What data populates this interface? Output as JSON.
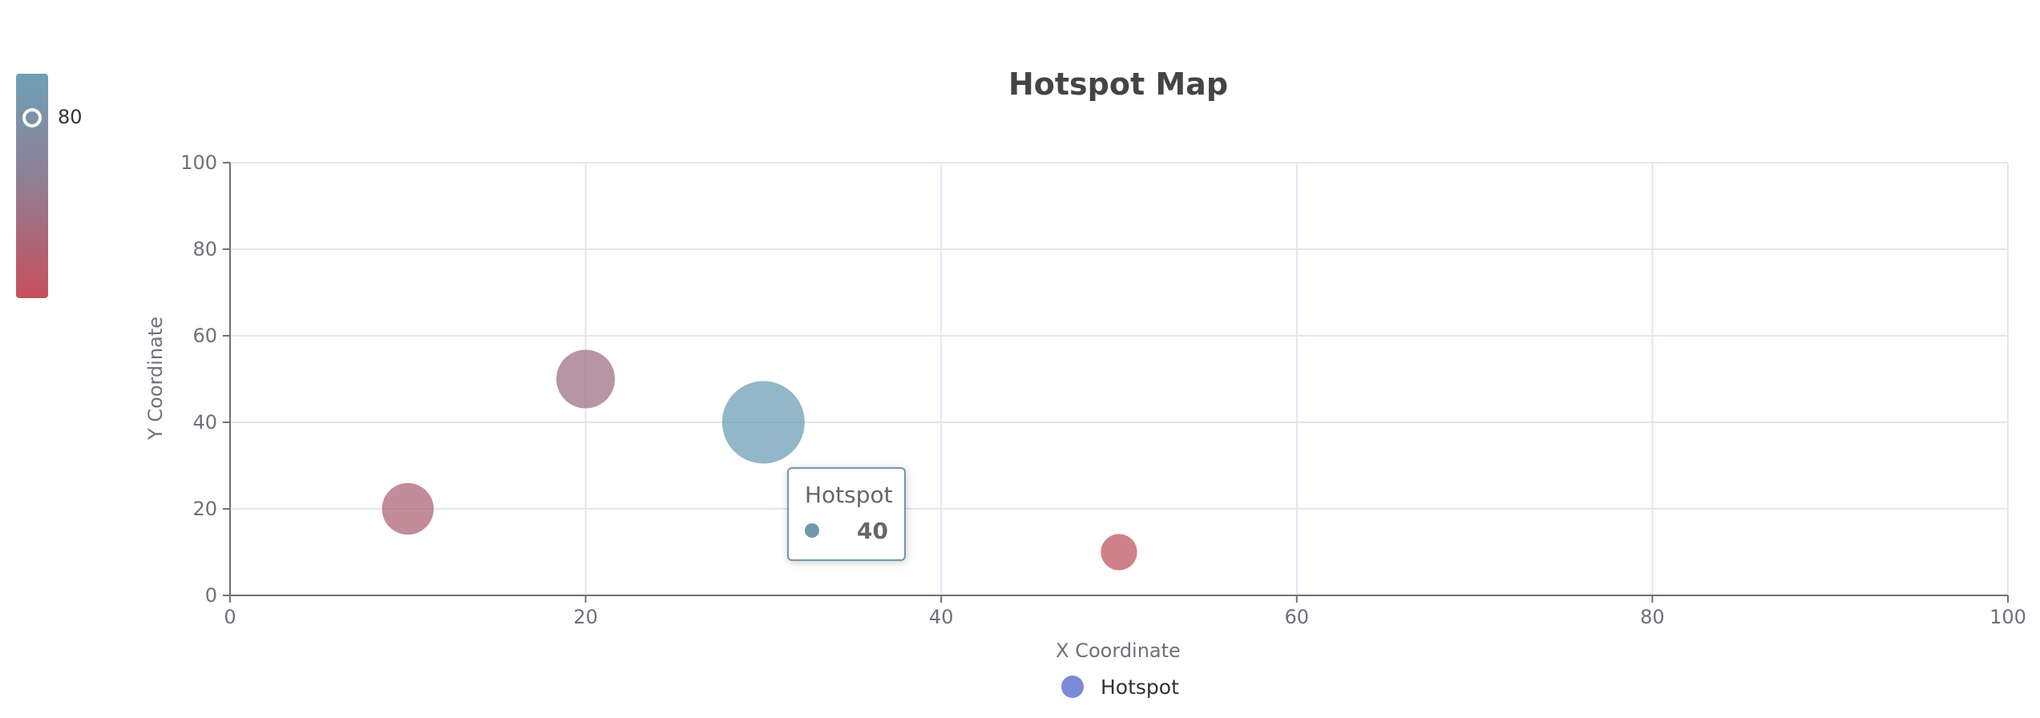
{
  "chart_data": {
    "type": "scatter",
    "title": "Hotspot Map",
    "xlabel": "X Coordinate",
    "ylabel": "Y Coordinate",
    "xlim": [
      0,
      100
    ],
    "ylim": [
      0,
      100
    ],
    "x_ticks": [
      "0",
      "20",
      "40",
      "60",
      "80",
      "100"
    ],
    "y_ticks": [
      "0",
      "20",
      "40",
      "60",
      "80",
      "100"
    ],
    "grid": true,
    "legend": {
      "position": "bottom-center",
      "entries": [
        "Hotspot"
      ],
      "color": "#7b89d6"
    },
    "series": [
      {
        "name": "Hotspot",
        "points": [
          {
            "x": 10,
            "y": 20,
            "value": 20
          },
          {
            "x": 20,
            "y": 50,
            "value": 30
          },
          {
            "x": 30,
            "y": 40,
            "value": 80
          },
          {
            "x": 50,
            "y": 10,
            "value": 5
          }
        ]
      }
    ],
    "visual_map": {
      "min": 0,
      "max": 80,
      "handle_value": "80",
      "color_low": "#c6505c",
      "color_mid": "#8e8197",
      "color_high": "#6e9fb5"
    },
    "tooltip": {
      "series": "Hotspot",
      "value": "40",
      "color": "#6f99ad"
    }
  }
}
